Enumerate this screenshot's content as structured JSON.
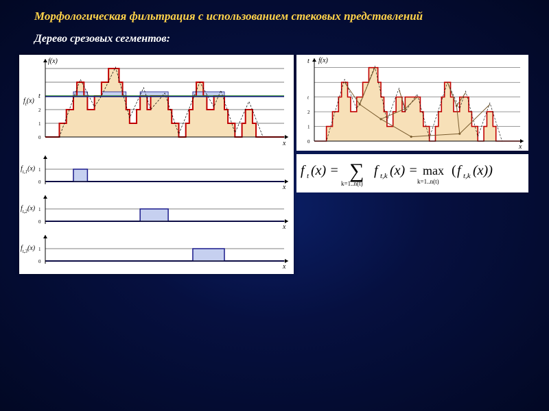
{
  "title": "Морфологическая фильтрация с использованием стековых представлений",
  "subtitle": "Дерево срезовых сегментов:",
  "colors": {
    "bg_inner": "#0b1f66",
    "bg_mid": "#061040",
    "bg_outer": "#020824",
    "title_color": "#ffd24a",
    "card_bg": "#ffffff",
    "axis": "#000000",
    "stair_stroke": "#c00000",
    "stair_fill": "#f7e0b8",
    "threshold_line": "#2a8f2a",
    "level_line": "#1a1a8a",
    "pulse_fill": "#c6d0f0",
    "tree_stroke": "#7a5c2e"
  },
  "left_panel": {
    "main_axis_label_y": "f(x)",
    "ft_label": "f_t(x)",
    "x_label": "x",
    "t_label": "t",
    "y_ticks": [
      "0",
      "1",
      "2"
    ],
    "main": {
      "grid_y": [
        0,
        1,
        2,
        3,
        4,
        5
      ],
      "threshold_y": 3.0,
      "signal_points": [
        [
          0,
          0
        ],
        [
          2,
          0
        ],
        [
          5,
          4.2
        ],
        [
          7,
          2.2
        ],
        [
          8,
          3.0
        ],
        [
          10,
          5.1
        ],
        [
          12,
          1.4
        ],
        [
          14,
          3.6
        ],
        [
          15,
          2.0
        ],
        [
          17,
          3.2
        ],
        [
          19,
          0.2
        ],
        [
          22,
          4.0
        ],
        [
          24,
          2.2
        ],
        [
          25,
          3.4
        ],
        [
          27,
          0.3
        ],
        [
          29,
          2.6
        ],
        [
          31,
          0
        ],
        [
          34,
          0
        ]
      ],
      "stair_levels": [
        [
          0,
          0
        ],
        [
          2,
          0
        ],
        [
          2,
          1
        ],
        [
          3,
          1
        ],
        [
          3,
          2
        ],
        [
          4,
          2
        ],
        [
          4,
          3
        ],
        [
          4.5,
          3
        ],
        [
          4.5,
          4
        ],
        [
          5.5,
          4
        ],
        [
          5.5,
          3
        ],
        [
          6,
          3
        ],
        [
          6,
          2
        ],
        [
          7,
          2
        ],
        [
          7,
          3
        ],
        [
          8,
          3
        ],
        [
          8,
          4
        ],
        [
          9,
          4
        ],
        [
          9,
          5
        ],
        [
          10.5,
          5
        ],
        [
          10.5,
          4
        ],
        [
          11,
          4
        ],
        [
          11,
          3
        ],
        [
          11.5,
          3
        ],
        [
          11.5,
          2
        ],
        [
          12,
          2
        ],
        [
          12,
          1
        ],
        [
          13,
          1
        ],
        [
          13,
          2
        ],
        [
          13.5,
          2
        ],
        [
          13.5,
          3
        ],
        [
          14.5,
          3
        ],
        [
          14.5,
          2
        ],
        [
          15,
          2
        ],
        [
          15,
          3
        ],
        [
          17.5,
          3
        ],
        [
          17.5,
          2
        ],
        [
          18,
          2
        ],
        [
          18,
          1
        ],
        [
          19,
          1
        ],
        [
          19,
          0
        ],
        [
          20,
          0
        ],
        [
          20,
          1
        ],
        [
          20.5,
          1
        ],
        [
          20.5,
          2
        ],
        [
          21,
          2
        ],
        [
          21,
          3
        ],
        [
          21.5,
          3
        ],
        [
          21.5,
          4
        ],
        [
          22.5,
          4
        ],
        [
          22.5,
          3
        ],
        [
          23,
          3
        ],
        [
          23,
          2
        ],
        [
          24,
          2
        ],
        [
          24,
          3
        ],
        [
          25.5,
          3
        ],
        [
          25.5,
          2
        ],
        [
          26,
          2
        ],
        [
          26,
          1
        ],
        [
          27,
          1
        ],
        [
          27,
          0
        ],
        [
          28,
          0
        ],
        [
          28,
          1
        ],
        [
          28.5,
          1
        ],
        [
          28.5,
          2
        ],
        [
          29.5,
          2
        ],
        [
          29.5,
          1
        ],
        [
          30,
          1
        ],
        [
          30,
          0
        ],
        [
          34,
          0
        ]
      ],
      "pulses_at_t": [
        [
          4,
          6
        ],
        [
          8,
          11.5
        ],
        [
          13.5,
          17.5
        ],
        [
          21,
          25.5
        ]
      ]
    },
    "sub_panels": [
      {
        "label": "f_{t,1}(x)",
        "pulses": [
          [
            4,
            6
          ]
        ]
      },
      {
        "label": "f_{t,2}(x)",
        "pulses": [
          [
            13.5,
            17.5
          ]
        ]
      },
      {
        "label": "f_{t,3}(x)",
        "pulses": [
          [
            21,
            25.5
          ]
        ]
      }
    ]
  },
  "right_panel": {
    "axis_label_y": "f(x)",
    "axis_label_x": "x",
    "t_label": "t",
    "y_ticks": [
      "0",
      "1",
      "2",
      "t"
    ],
    "signal_points": [
      [
        0,
        0
      ],
      [
        2,
        0
      ],
      [
        5,
        4.2
      ],
      [
        7,
        2.2
      ],
      [
        8,
        3.0
      ],
      [
        10,
        5.1
      ],
      [
        12,
        1.4
      ],
      [
        14,
        3.6
      ],
      [
        15,
        2.0
      ],
      [
        17,
        3.2
      ],
      [
        19,
        0.2
      ],
      [
        22,
        4.0
      ],
      [
        24,
        2.2
      ],
      [
        25,
        3.4
      ],
      [
        27,
        0.3
      ],
      [
        29,
        2.6
      ],
      [
        31,
        0
      ],
      [
        34,
        0
      ]
    ],
    "stair_levels": [
      [
        0,
        0
      ],
      [
        2,
        0
      ],
      [
        2,
        1
      ],
      [
        3,
        1
      ],
      [
        3,
        2
      ],
      [
        4,
        2
      ],
      [
        4,
        3
      ],
      [
        4.5,
        3
      ],
      [
        4.5,
        4
      ],
      [
        5.5,
        4
      ],
      [
        5.5,
        3
      ],
      [
        6,
        3
      ],
      [
        6,
        2
      ],
      [
        7,
        2
      ],
      [
        7,
        3
      ],
      [
        8,
        3
      ],
      [
        8,
        4
      ],
      [
        9,
        4
      ],
      [
        9,
        5
      ],
      [
        10.5,
        5
      ],
      [
        10.5,
        4
      ],
      [
        11,
        4
      ],
      [
        11,
        3
      ],
      [
        11.5,
        3
      ],
      [
        11.5,
        2
      ],
      [
        12,
        2
      ],
      [
        12,
        1
      ],
      [
        13,
        1
      ],
      [
        13,
        2
      ],
      [
        13.5,
        2
      ],
      [
        13.5,
        3
      ],
      [
        14.5,
        3
      ],
      [
        14.5,
        2
      ],
      [
        15,
        2
      ],
      [
        15,
        3
      ],
      [
        17.5,
        3
      ],
      [
        17.5,
        2
      ],
      [
        18,
        2
      ],
      [
        18,
        1
      ],
      [
        19,
        1
      ],
      [
        19,
        0
      ],
      [
        20,
        0
      ],
      [
        20,
        1
      ],
      [
        20.5,
        1
      ],
      [
        20.5,
        2
      ],
      [
        21,
        2
      ],
      [
        21,
        3
      ],
      [
        21.5,
        3
      ],
      [
        21.5,
        4
      ],
      [
        22.5,
        4
      ],
      [
        22.5,
        3
      ],
      [
        23,
        3
      ],
      [
        23,
        2
      ],
      [
        24,
        2
      ],
      [
        24,
        3
      ],
      [
        25.5,
        3
      ],
      [
        25.5,
        2
      ],
      [
        26,
        2
      ],
      [
        26,
        1
      ],
      [
        27,
        1
      ],
      [
        27,
        0
      ],
      [
        28,
        0
      ],
      [
        28,
        1
      ],
      [
        28.5,
        1
      ],
      [
        28.5,
        2
      ],
      [
        29.5,
        2
      ],
      [
        29.5,
        1
      ],
      [
        30,
        1
      ],
      [
        30,
        0
      ],
      [
        34,
        0
      ]
    ],
    "tree_edges": [
      [
        [
          5,
          4
        ],
        [
          7.5,
          2.5
        ]
      ],
      [
        [
          10,
          5
        ],
        [
          7.5,
          2.5
        ]
      ],
      [
        [
          7.5,
          2.5
        ],
        [
          11,
          1.5
        ]
      ],
      [
        [
          14,
          3.5
        ],
        [
          15,
          2.2
        ]
      ],
      [
        [
          17,
          3
        ],
        [
          15,
          2.2
        ]
      ],
      [
        [
          15,
          2.2
        ],
        [
          11,
          1.5
        ]
      ],
      [
        [
          11,
          1.5
        ],
        [
          16,
          0.3
        ]
      ],
      [
        [
          22,
          4
        ],
        [
          23.5,
          2.4
        ]
      ],
      [
        [
          25,
          3.3
        ],
        [
          23.5,
          2.4
        ]
      ],
      [
        [
          23.5,
          2.4
        ],
        [
          24,
          0.5
        ]
      ],
      [
        [
          29,
          2.5
        ],
        [
          24,
          0.5
        ]
      ],
      [
        [
          24,
          0.5
        ],
        [
          16,
          0.3
        ]
      ]
    ]
  },
  "formula_text": {
    "lhs": "f",
    "sub_t": "t",
    "of_x": "(x) =",
    "sum": "∑",
    "sum_sub": "k=1..n(t)",
    "mid": "f",
    "sub_tk": "t,k",
    "of_x2": "(x) =",
    "max": "max",
    "max_sub": "k=1..n(t)",
    "open": "(",
    "f3": "f",
    "sub_tk2": "t,k",
    "close": "(x))"
  }
}
